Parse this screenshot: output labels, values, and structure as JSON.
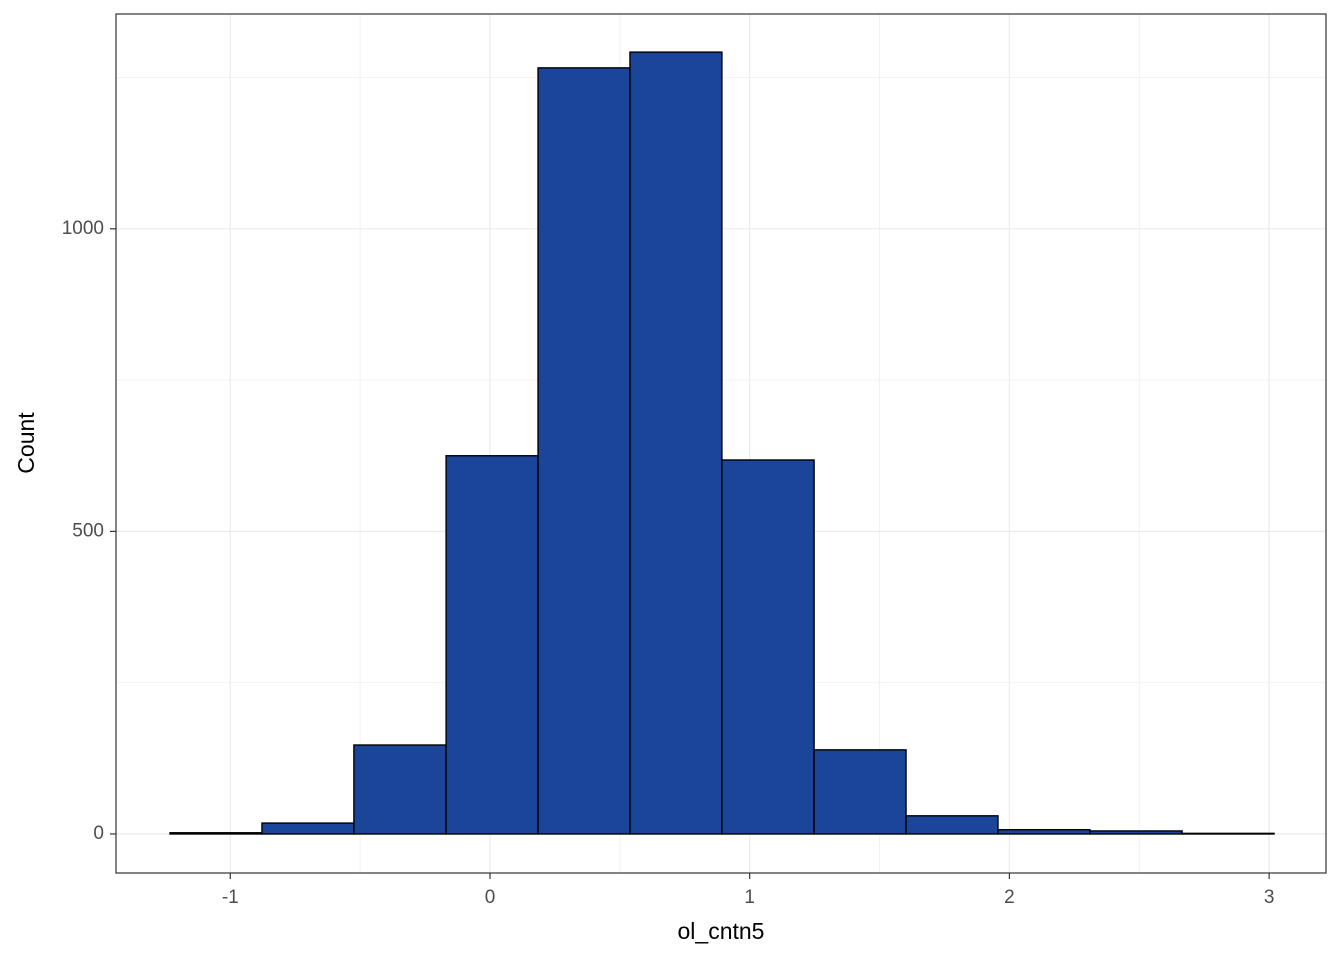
{
  "chart_data": {
    "type": "histogram",
    "x_label": "ol_cntn5",
    "y_label": "Count",
    "bins": [
      -1.232,
      -0.878,
      -0.524,
      -0.169,
      0.185,
      0.539,
      0.893,
      1.248,
      1.602,
      1.956,
      2.31,
      2.665,
      3.019
    ],
    "values": [
      2,
      18,
      147,
      625,
      1266,
      1292,
      618,
      139,
      30,
      7,
      5,
      1
    ],
    "color": "#1a4599",
    "edge_color": "#000000",
    "xlim": [
      -1.44,
      3.219
    ],
    "ylim": [
      -64.5,
      1355
    ],
    "xticks": [
      -1,
      0,
      1,
      2,
      3
    ],
    "yticks": [
      0,
      500,
      1000
    ],
    "minor_grid": {
      "x": [
        -0.5,
        0.5,
        1.5,
        2.5
      ],
      "y": [
        250,
        750,
        1250
      ]
    },
    "grid": true
  }
}
